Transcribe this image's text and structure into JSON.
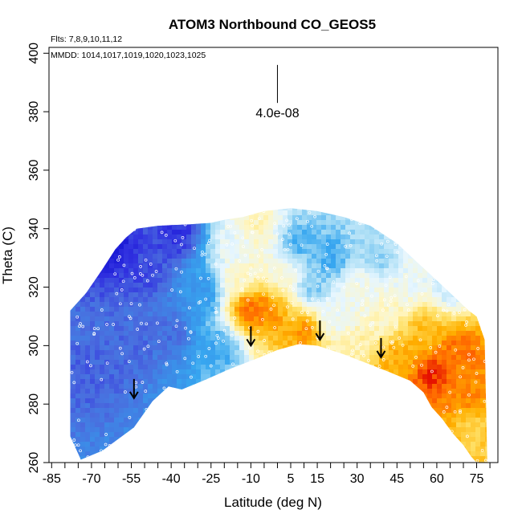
{
  "chart_data": {
    "type": "heatmap",
    "title": "ATOM3 Northbound CO_GEOS5",
    "flights_note": "Flts: 7,8,9,10,11,12",
    "dates_note": "MMDD: 1014,1017,1019,1020,1023,1025",
    "xlabel": "Latitude (deg N)",
    "ylabel": "Theta (C)",
    "xlim": [
      -86,
      83
    ],
    "ylim": [
      260,
      402
    ],
    "x_ticks": [
      -85,
      -70,
      -55,
      -40,
      -25,
      -10,
      5,
      15,
      30,
      45,
      60,
      75
    ],
    "x_tick_labels": [
      "-85",
      "-70",
      "-55",
      "-40",
      "-25",
      "-10",
      "5",
      "15",
      "30",
      "45",
      "60",
      "75"
    ],
    "x_minor_ticks": [
      -80,
      -75,
      -65,
      -60,
      -50,
      -45,
      -35,
      -30,
      -20,
      -15,
      -5,
      0,
      10,
      20,
      25,
      35,
      40,
      50,
      55,
      65,
      70,
      80
    ],
    "y_ticks": [
      260,
      280,
      300,
      320,
      340,
      360,
      380,
      400
    ],
    "y_tick_labels": [
      "260",
      "280",
      "300",
      "320",
      "340",
      "360",
      "380",
      "400"
    ],
    "scale_bar": {
      "label": "4.0e-08",
      "x": 0,
      "theta_top": 396,
      "theta_bottom": 383
    },
    "tropopause_arrows": [
      {
        "lat": -54,
        "theta": 282
      },
      {
        "lat": -10,
        "theta": 300
      },
      {
        "lat": 16,
        "theta": 302
      },
      {
        "lat": 39,
        "theta": 296
      }
    ],
    "coverage_top": [
      [
        -78,
        312
      ],
      [
        -72,
        318
      ],
      [
        -66,
        326
      ],
      [
        -61,
        333
      ],
      [
        -57,
        337
      ],
      [
        -53,
        340
      ],
      [
        -45,
        341
      ],
      [
        -33,
        341.5
      ],
      [
        -25,
        342
      ],
      [
        -20,
        343
      ],
      [
        -13,
        344
      ],
      [
        -5,
        346
      ],
      [
        5,
        347
      ],
      [
        15,
        346
      ],
      [
        25,
        344
      ],
      [
        35,
        341
      ],
      [
        45,
        335
      ],
      [
        52,
        329
      ],
      [
        58,
        324
      ],
      [
        65,
        318
      ],
      [
        72,
        312
      ],
      [
        75,
        310
      ],
      [
        78,
        302
      ]
    ],
    "coverage_bottom": [
      [
        -78,
        269
      ],
      [
        -74,
        261
      ],
      [
        -66,
        264
      ],
      [
        -60,
        268
      ],
      [
        -54,
        272
      ],
      [
        -47,
        281
      ],
      [
        -41,
        286
      ],
      [
        -36,
        285
      ],
      [
        -28,
        288
      ],
      [
        -18,
        292
      ],
      [
        -8,
        295.5
      ],
      [
        0,
        298.5
      ],
      [
        8,
        300.5
      ],
      [
        15,
        300
      ],
      [
        25,
        297
      ],
      [
        35,
        293.5
      ],
      [
        42,
        291
      ],
      [
        50,
        288
      ],
      [
        55,
        284
      ],
      [
        58,
        279
      ],
      [
        62,
        275
      ],
      [
        66,
        270
      ],
      [
        70,
        266
      ],
      [
        73,
        262
      ],
      [
        75,
        260
      ],
      [
        79,
        260
      ]
    ],
    "colorscale": [
      "#1010d0",
      "#3030e0",
      "#4a6cde",
      "#3b8ee8",
      "#37a7f0",
      "#a9ddf5",
      "#e6f6ff",
      "#fff6c2",
      "#ffe066",
      "#ffb000",
      "#ff6a00",
      "#e00000"
    ],
    "field_anchors": [
      {
        "lat": -70,
        "theta": 290,
        "value": 0.17
      },
      {
        "lat": -55,
        "theta": 300,
        "value": 0.18
      },
      {
        "lat": -50,
        "theta": 325,
        "value": 0.13
      },
      {
        "lat": -62,
        "theta": 333,
        "value": 0.05
      },
      {
        "lat": -38,
        "theta": 338,
        "value": 0.09
      },
      {
        "lat": -40,
        "theta": 305,
        "value": 0.19
      },
      {
        "lat": -28,
        "theta": 318,
        "value": 0.3
      },
      {
        "lat": -22,
        "theta": 300,
        "value": 0.36
      },
      {
        "lat": -15,
        "theta": 335,
        "value": 0.55
      },
      {
        "lat": -14,
        "theta": 322,
        "value": 0.62
      },
      {
        "lat": -11,
        "theta": 313,
        "value": 0.92
      },
      {
        "lat": -4,
        "theta": 312,
        "value": 0.88
      },
      {
        "lat": -8,
        "theta": 340,
        "value": 0.65
      },
      {
        "lat": 2,
        "theta": 325,
        "value": 0.6
      },
      {
        "lat": 8,
        "theta": 335,
        "value": 0.38
      },
      {
        "lat": 14,
        "theta": 320,
        "value": 0.42
      },
      {
        "lat": 10,
        "theta": 305,
        "value": 0.86
      },
      {
        "lat": 22,
        "theta": 310,
        "value": 0.55
      },
      {
        "lat": 20,
        "theta": 330,
        "value": 0.36
      },
      {
        "lat": 30,
        "theta": 320,
        "value": 0.58
      },
      {
        "lat": 28,
        "theta": 300,
        "value": 0.66
      },
      {
        "lat": 38,
        "theta": 330,
        "value": 0.44
      },
      {
        "lat": 40,
        "theta": 310,
        "value": 0.62
      },
      {
        "lat": 45,
        "theta": 296,
        "value": 0.82
      },
      {
        "lat": 50,
        "theta": 322,
        "value": 0.56
      },
      {
        "lat": 55,
        "theta": 305,
        "value": 0.8
      },
      {
        "lat": 58,
        "theta": 290,
        "value": 0.96
      },
      {
        "lat": 65,
        "theta": 320,
        "value": 0.5
      },
      {
        "lat": 68,
        "theta": 298,
        "value": 0.9
      },
      {
        "lat": 72,
        "theta": 285,
        "value": 0.87
      },
      {
        "lat": 74,
        "theta": 270,
        "value": 0.76
      }
    ]
  }
}
